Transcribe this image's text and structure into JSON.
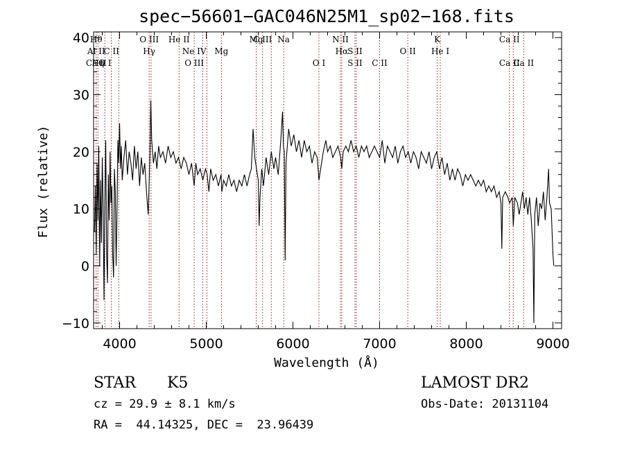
{
  "chart_data": {
    "type": "line",
    "title": "spec−56601−GAC046N25M1_sp02−168.fits",
    "xlabel": "Wavelength (Å)",
    "ylabel": "Flux (relative)",
    "xlim": [
      3700,
      9100
    ],
    "ylim": [
      -11,
      41
    ],
    "x_ticks": [
      4000,
      5000,
      6000,
      7000,
      8000,
      9000
    ],
    "y_ticks": [
      -10,
      0,
      10,
      20,
      30,
      40
    ],
    "tick_labels_x": [
      "4000",
      "5000",
      "6000",
      "7000",
      "8000",
      "9000"
    ],
    "tick_labels_y": [
      "−10",
      "0",
      "10",
      "20",
      "30",
      "40"
    ],
    "line_color": "#000000",
    "marker_color": "#8b0000",
    "series": [
      {
        "points": [
          [
            3710,
            6
          ],
          [
            3720,
            14
          ],
          [
            3730,
            2
          ],
          [
            3740,
            18
          ],
          [
            3750,
            8
          ],
          [
            3760,
            21
          ],
          [
            3770,
            0
          ],
          [
            3780,
            15
          ],
          [
            3790,
            4
          ],
          [
            3800,
            19
          ],
          [
            3810,
            10
          ],
          [
            3820,
            -6
          ],
          [
            3830,
            12
          ],
          [
            3840,
            22
          ],
          [
            3850,
            2
          ],
          [
            3860,
            -3
          ],
          [
            3870,
            16
          ],
          [
            3880,
            8
          ],
          [
            3890,
            20
          ],
          [
            3900,
            11
          ],
          [
            3910,
            14
          ],
          [
            3920,
            2
          ],
          [
            3930,
            -2
          ],
          [
            3940,
            17
          ],
          [
            3950,
            13
          ],
          [
            3960,
            0
          ],
          [
            3970,
            10
          ],
          [
            3980,
            22
          ],
          [
            3990,
            18
          ],
          [
            4000,
            25
          ],
          [
            4010,
            17
          ],
          [
            4020,
            21
          ],
          [
            4030,
            15
          ],
          [
            4050,
            19
          ],
          [
            4070,
            22
          ],
          [
            4090,
            16
          ],
          [
            4110,
            20
          ],
          [
            4130,
            18
          ],
          [
            4150,
            15
          ],
          [
            4170,
            21
          ],
          [
            4190,
            17
          ],
          [
            4210,
            20
          ],
          [
            4230,
            14
          ],
          [
            4250,
            19
          ],
          [
            4270,
            16
          ],
          [
            4290,
            18
          ],
          [
            4310,
            13
          ],
          [
            4330,
            9
          ],
          [
            4340,
            14
          ],
          [
            4350,
            20
          ],
          [
            4360,
            29
          ],
          [
            4370,
            22
          ],
          [
            4390,
            18
          ],
          [
            4410,
            20
          ],
          [
            4430,
            17
          ],
          [
            4450,
            21
          ],
          [
            4470,
            19
          ],
          [
            4500,
            20
          ],
          [
            4530,
            18
          ],
          [
            4560,
            21
          ],
          [
            4590,
            19
          ],
          [
            4620,
            20
          ],
          [
            4650,
            18
          ],
          [
            4680,
            19
          ],
          [
            4710,
            17
          ],
          [
            4740,
            19
          ],
          [
            4770,
            18
          ],
          [
            4800,
            16
          ],
          [
            4830,
            18
          ],
          [
            4860,
            14
          ],
          [
            4880,
            18
          ],
          [
            4900,
            16
          ],
          [
            4930,
            17
          ],
          [
            4960,
            15
          ],
          [
            4990,
            17
          ],
          [
            5010,
            16
          ],
          [
            5030,
            13
          ],
          [
            5050,
            17
          ],
          [
            5080,
            15
          ],
          [
            5110,
            16
          ],
          [
            5140,
            14
          ],
          [
            5170,
            16
          ],
          [
            5180,
            13
          ],
          [
            5200,
            15
          ],
          [
            5230,
            14
          ],
          [
            5260,
            16
          ],
          [
            5290,
            14
          ],
          [
            5320,
            15
          ],
          [
            5350,
            13
          ],
          [
            5380,
            15
          ],
          [
            5410,
            14
          ],
          [
            5440,
            16
          ],
          [
            5470,
            14
          ],
          [
            5500,
            16
          ],
          [
            5520,
            17
          ],
          [
            5540,
            24
          ],
          [
            5560,
            19
          ],
          [
            5580,
            17
          ],
          [
            5600,
            15
          ],
          [
            5610,
            7
          ],
          [
            5620,
            12
          ],
          [
            5640,
            17
          ],
          [
            5660,
            14
          ],
          [
            5690,
            19
          ],
          [
            5720,
            16
          ],
          [
            5750,
            20
          ],
          [
            5780,
            17
          ],
          [
            5800,
            19
          ],
          [
            5830,
            16
          ],
          [
            5860,
            22
          ],
          [
            5880,
            27
          ],
          [
            5890,
            21
          ],
          [
            5900,
            20
          ],
          [
            5910,
            1
          ],
          [
            5920,
            18
          ],
          [
            5950,
            24
          ],
          [
            5980,
            21
          ],
          [
            6010,
            23
          ],
          [
            6040,
            20
          ],
          [
            6070,
            22
          ],
          [
            6100,
            19
          ],
          [
            6130,
            22
          ],
          [
            6160,
            20
          ],
          [
            6190,
            21
          ],
          [
            6220,
            18
          ],
          [
            6250,
            20
          ],
          [
            6280,
            19
          ],
          [
            6300,
            15
          ],
          [
            6320,
            17
          ],
          [
            6350,
            20
          ],
          [
            6380,
            22
          ],
          [
            6400,
            20
          ],
          [
            6430,
            21
          ],
          [
            6460,
            19
          ],
          [
            6490,
            20
          ],
          [
            6520,
            21
          ],
          [
            6550,
            19
          ],
          [
            6563,
            17
          ],
          [
            6580,
            20
          ],
          [
            6610,
            21
          ],
          [
            6640,
            20
          ],
          [
            6670,
            22
          ],
          [
            6700,
            20
          ],
          [
            6730,
            21
          ],
          [
            6760,
            19
          ],
          [
            6790,
            21
          ],
          [
            6820,
            20
          ],
          [
            6850,
            21
          ],
          [
            6880,
            19
          ],
          [
            6910,
            20
          ],
          [
            6940,
            21
          ],
          [
            6970,
            20
          ],
          [
            7000,
            19
          ],
          [
            7030,
            22
          ],
          [
            7060,
            18
          ],
          [
            7090,
            21
          ],
          [
            7120,
            20
          ],
          [
            7150,
            19
          ],
          [
            7180,
            21
          ],
          [
            7210,
            18
          ],
          [
            7240,
            20
          ],
          [
            7270,
            21
          ],
          [
            7300,
            19
          ],
          [
            7330,
            20
          ],
          [
            7360,
            18
          ],
          [
            7390,
            20
          ],
          [
            7420,
            19
          ],
          [
            7450,
            17
          ],
          [
            7480,
            20
          ],
          [
            7510,
            19
          ],
          [
            7540,
            18
          ],
          [
            7570,
            20
          ],
          [
            7600,
            17
          ],
          [
            7630,
            19
          ],
          [
            7660,
            20
          ],
          [
            7690,
            17
          ],
          [
            7720,
            19
          ],
          [
            7750,
            16
          ],
          [
            7780,
            18
          ],
          [
            7810,
            15
          ],
          [
            7840,
            17
          ],
          [
            7870,
            15
          ],
          [
            7900,
            17
          ],
          [
            7930,
            16
          ],
          [
            7960,
            14
          ],
          [
            7990,
            16
          ],
          [
            8020,
            15
          ],
          [
            8050,
            16
          ],
          [
            8080,
            15
          ],
          [
            8110,
            14
          ],
          [
            8140,
            15
          ],
          [
            8170,
            14
          ],
          [
            8200,
            15
          ],
          [
            8230,
            13
          ],
          [
            8260,
            14
          ],
          [
            8290,
            13
          ],
          [
            8320,
            14
          ],
          [
            8350,
            12
          ],
          [
            8380,
            13
          ],
          [
            8400,
            11
          ],
          [
            8410,
            3
          ],
          [
            8420,
            12
          ],
          [
            8450,
            13
          ],
          [
            8480,
            12
          ],
          [
            8500,
            11
          ],
          [
            8530,
            12
          ],
          [
            8542,
            7
          ],
          [
            8560,
            12
          ],
          [
            8590,
            11
          ],
          [
            8610,
            9
          ],
          [
            8630,
            11
          ],
          [
            8650,
            13
          ],
          [
            8670,
            10
          ],
          [
            8690,
            12
          ],
          [
            8710,
            9
          ],
          [
            8730,
            12
          ],
          [
            8750,
            8
          ],
          [
            8770,
            3
          ],
          [
            8780,
            -10
          ],
          [
            8790,
            9
          ],
          [
            8810,
            12
          ],
          [
            8830,
            7
          ],
          [
            8850,
            11
          ],
          [
            8870,
            10
          ],
          [
            8890,
            13
          ],
          [
            8910,
            8
          ],
          [
            8930,
            12
          ],
          [
            8950,
            17
          ],
          [
            8960,
            11
          ],
          [
            8980,
            10
          ],
          [
            9000,
            2
          ],
          [
            9010,
            0
          ]
        ]
      }
    ],
    "lines": [
      {
        "w": 3730,
        "labels": [
          "Hθ",
          "Al II",
          "Ca II"
        ]
      },
      {
        "w": 3750,
        "labels": [
          "",
          "",
          "Hη"
        ]
      },
      {
        "w": 3830,
        "labels": [
          "",
          "",
          "O I"
        ]
      },
      {
        "w": 3905,
        "labels": [
          "",
          "C II",
          ""
        ]
      },
      {
        "w": 3990,
        "labels": [
          "",
          "",
          ""
        ]
      },
      {
        "w": 4341,
        "labels": [
          "O III",
          "Hγ",
          ""
        ]
      },
      {
        "w": 4363,
        "labels": [
          "",
          "",
          ""
        ]
      },
      {
        "w": 4686,
        "labels": [
          "He II",
          "",
          ""
        ]
      },
      {
        "w": 4861,
        "labels": [
          "",
          "Ne IV",
          "O III"
        ]
      },
      {
        "w": 4959,
        "labels": [
          "",
          "",
          ""
        ]
      },
      {
        "w": 5007,
        "labels": [
          "",
          "",
          ""
        ]
      },
      {
        "w": 5175,
        "labels": [
          "",
          "Mg",
          ""
        ]
      },
      {
        "w": 5577,
        "labels": [
          "Mg",
          "",
          ""
        ]
      },
      {
        "w": 5650,
        "labels": [
          "C III",
          "",
          ""
        ]
      },
      {
        "w": 5750,
        "labels": [
          "",
          "",
          ""
        ]
      },
      {
        "w": 5893,
        "labels": [
          "Na",
          "",
          ""
        ]
      },
      {
        "w": 6300,
        "labels": [
          "",
          "",
          "O I"
        ]
      },
      {
        "w": 6548,
        "labels": [
          "N II",
          "",
          ""
        ]
      },
      {
        "w": 6563,
        "labels": [
          "",
          "Hα",
          ""
        ]
      },
      {
        "w": 6716,
        "labels": [
          "",
          "S II",
          "S II"
        ]
      },
      {
        "w": 6731,
        "labels": [
          "",
          "",
          ""
        ]
      },
      {
        "w": 7000,
        "labels": [
          "",
          "",
          "C II"
        ]
      },
      {
        "w": 7325,
        "labels": [
          "",
          "O II",
          ""
        ]
      },
      {
        "w": 7665,
        "labels": [
          "K",
          "",
          ""
        ]
      },
      {
        "w": 7700,
        "labels": [
          "",
          "He I",
          ""
        ]
      },
      {
        "w": 8498,
        "labels": [
          "Ca II",
          "",
          "Ca II"
        ]
      },
      {
        "w": 8542,
        "labels": [
          "",
          "",
          ""
        ]
      },
      {
        "w": 8662,
        "labels": [
          "",
          "",
          "Ca II"
        ]
      }
    ]
  },
  "info": {
    "class": "STAR",
    "subclass": "K5",
    "cz": "cz = 29.9 ± 8.1 km/s",
    "radec": "RA =  44.14325, DEC =  23.96439",
    "survey": "LAMOST DR2",
    "obs_date": "Obs-Date: 20131104"
  }
}
